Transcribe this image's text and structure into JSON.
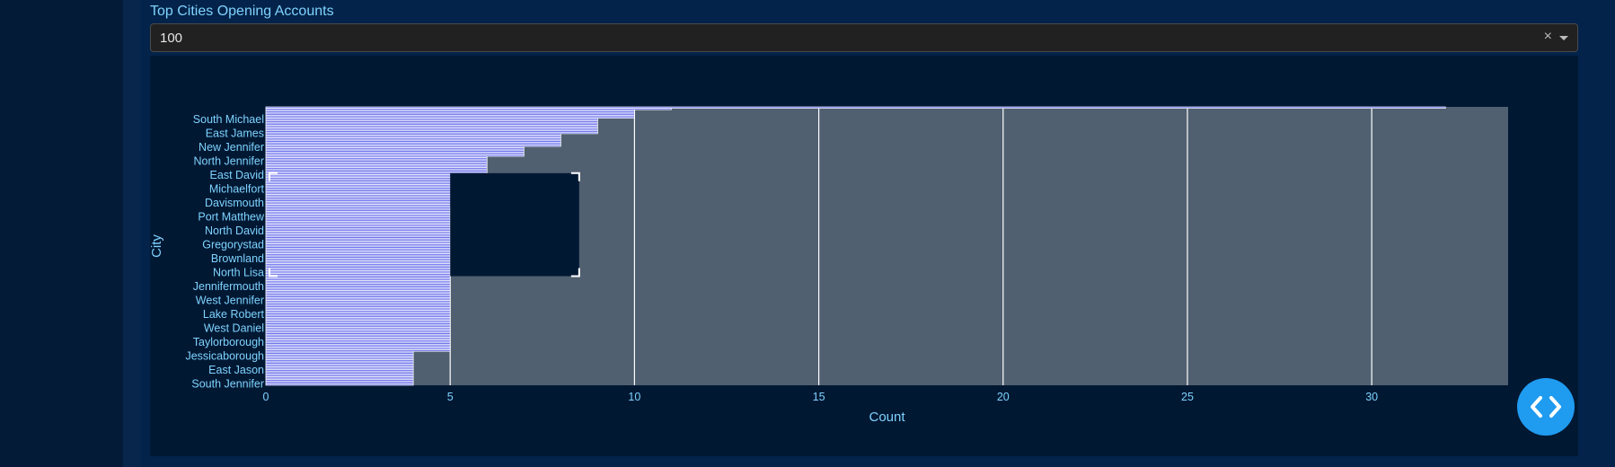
{
  "filter": {
    "label": "Top Cities Opening Accounts",
    "value": "100",
    "clear_icon": "×",
    "dropdown_icon": "caret-down-icon"
  },
  "chart_data": {
    "type": "bar",
    "orientation": "horizontal",
    "title": "",
    "xlabel": "Count",
    "ylabel": "City",
    "xlim": [
      0,
      33.7
    ],
    "x_ticks": [
      0,
      5,
      10,
      15,
      20,
      25,
      30
    ],
    "bar_color": "#5b62e9",
    "bar_edge_color": "#ffffff",
    "plot_bg": "#506070",
    "labeled_cities": [
      "South Michael",
      "East James",
      "New Jennifer",
      "North Jennifer",
      "East David",
      "Michaelfort",
      "Davismouth",
      "Port Matthew",
      "North David",
      "Gregorystad",
      "Brownland",
      "North Lisa",
      "Jennifermouth",
      "West Jennifer",
      "Lake Robert",
      "West Daniel",
      "Taylorborough",
      "Jessicaborough",
      "East Jason",
      "South Jennifer"
    ],
    "series": [
      {
        "values_top_to_bottom": [
          32,
          11,
          10,
          10,
          10,
          10,
          10,
          10,
          9,
          9,
          9,
          9,
          9,
          9,
          9,
          9,
          9,
          9,
          9,
          8,
          8,
          8,
          8,
          8,
          8,
          8,
          8,
          8,
          7,
          7,
          7,
          7,
          7,
          7,
          7,
          6,
          6,
          6,
          6,
          6,
          6,
          6,
          6,
          6,
          6,
          6,
          6,
          6,
          6,
          6,
          6,
          6,
          6,
          6,
          6,
          6,
          6,
          6,
          6,
          6,
          6,
          6,
          6,
          6,
          6,
          6,
          6,
          6,
          6,
          6,
          6,
          5,
          5,
          5,
          5,
          5,
          5,
          5,
          5,
          5,
          5,
          5,
          5,
          5,
          5,
          5,
          5,
          5,
          5,
          5,
          5,
          5,
          5,
          5,
          5,
          5,
          5,
          5,
          5,
          5,
          5,
          5,
          5,
          5,
          5,
          5,
          5,
          5,
          5,
          5,
          5,
          5,
          5,
          5,
          5,
          5,
          5,
          5,
          5,
          5,
          5,
          5,
          5,
          5,
          5,
          5,
          5,
          5,
          5,
          5,
          5,
          5,
          5,
          5,
          5,
          5,
          5,
          5,
          5,
          5,
          5,
          5,
          5,
          5,
          5,
          5,
          5,
          5,
          5,
          5,
          5,
          5,
          5,
          5,
          5,
          5,
          5,
          5,
          5,
          5,
          5,
          5,
          5,
          5,
          5,
          5,
          5,
          5,
          5,
          5,
          5,
          5,
          5,
          4,
          4,
          4,
          4,
          4,
          4,
          4,
          4,
          4,
          4,
          4,
          4,
          4,
          4,
          4,
          4,
          4,
          4,
          4,
          4,
          4,
          4,
          4,
          4
        ]
      }
    ]
  },
  "fab": {
    "icon": "code-icon"
  }
}
